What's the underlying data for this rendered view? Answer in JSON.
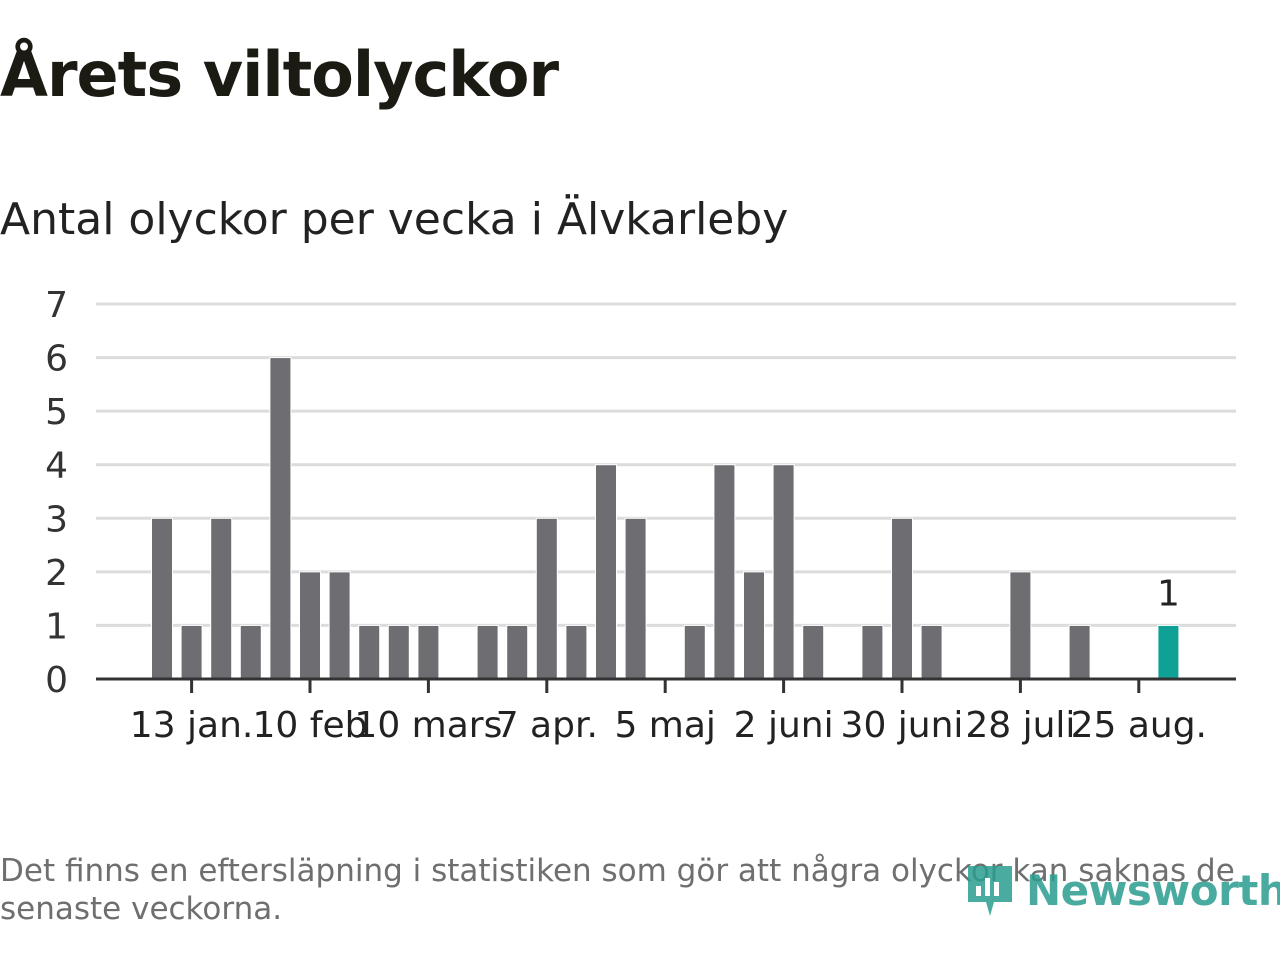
{
  "header": {
    "title": "Årets viltolyckor",
    "subtitle": "Antal olyckor per vecka i Älvkarleby"
  },
  "footer": {
    "note": "Det finns en eftersläpning i statistiken som gör att några olyckor kan saknas de senaste veckorna.",
    "brand": "Newsworthy"
  },
  "colors": {
    "bar": "#6e6d72",
    "highlight": "#10a196",
    "grid": "#dcdcdc",
    "axis": "#333333",
    "brand": "#2a9d8f"
  },
  "chart_data": {
    "type": "bar",
    "title": "Antal olyckor per vecka i Älvkarleby",
    "xlabel": "",
    "ylabel": "",
    "ylim": [
      0,
      7
    ],
    "yticks": [
      0,
      1,
      2,
      3,
      4,
      5,
      6,
      7
    ],
    "grid": true,
    "values": [
      3,
      1,
      3,
      1,
      6,
      2,
      2,
      1,
      1,
      1,
      0,
      1,
      1,
      3,
      1,
      4,
      3,
      0,
      1,
      4,
      2,
      4,
      1,
      0,
      1,
      3,
      1,
      0,
      0,
      2,
      0,
      1,
      0,
      0,
      1
    ],
    "xticks": [
      {
        "label": "13 jan.",
        "index": 1
      },
      {
        "label": "10 feb",
        "index": 5
      },
      {
        "label": "10 mars",
        "index": 9
      },
      {
        "label": "7 apr.",
        "index": 13
      },
      {
        "label": "5 maj",
        "index": 17
      },
      {
        "label": "2 juni",
        "index": 21
      },
      {
        "label": "30 juni",
        "index": 25
      },
      {
        "label": "28 juli",
        "index": 29
      },
      {
        "label": "25 aug.",
        "index": 33
      }
    ],
    "highlight_index": 34,
    "highlight_label": "1"
  }
}
